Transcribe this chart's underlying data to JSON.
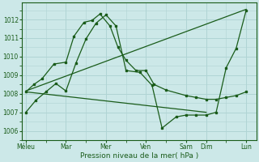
{
  "xlabel": "Pression niveau de la mer( hPa )",
  "background_color": "#cce8e8",
  "grid_color": "#b0d4d4",
  "line_color": "#1a5c1a",
  "ylim": [
    1005.5,
    1012.9
  ],
  "yticks": [
    1006,
    1007,
    1008,
    1009,
    1010,
    1011,
    1012
  ],
  "x_labels": [
    "Méleu",
    "Mar",
    "Mer",
    "Ven",
    "Sam",
    "Dim",
    "Lun"
  ],
  "x_positions": [
    0,
    2,
    4,
    6,
    8,
    9,
    11
  ],
  "xlim": [
    -0.2,
    11.5
  ],
  "trend_up": {
    "x": [
      0,
      11
    ],
    "y": [
      1008.15,
      1012.55
    ]
  },
  "trend_down": {
    "x": [
      0,
      9.0
    ],
    "y": [
      1008.1,
      1007.0
    ]
  },
  "line_jagged1": {
    "x": [
      0,
      0.4,
      0.8,
      1.4,
      2.0,
      2.4,
      2.9,
      3.3,
      3.7,
      4.2,
      4.6,
      5.0,
      5.5,
      6.0,
      6.4,
      7.0,
      8.0,
      8.5,
      9.0,
      9.5,
      10.0,
      10.5,
      11.0
    ],
    "y": [
      1008.1,
      1008.5,
      1008.8,
      1009.6,
      1009.7,
      1011.1,
      1011.85,
      1011.95,
      1012.3,
      1011.65,
      1010.5,
      1009.8,
      1009.25,
      1009.25,
      1008.5,
      1008.2,
      1007.9,
      1007.8,
      1007.7,
      1007.7,
      1007.8,
      1007.9,
      1008.1
    ]
  },
  "line_jagged2": {
    "x": [
      0,
      0.5,
      1.0,
      1.5,
      2.0,
      2.5,
      3.0,
      3.5,
      4.0,
      4.5,
      5.0,
      5.7,
      6.3,
      6.8,
      7.5,
      8.0,
      8.5,
      9.0,
      9.5,
      10.0,
      10.5,
      11.0
    ],
    "y": [
      1007.0,
      1007.65,
      1008.1,
      1008.55,
      1008.15,
      1009.65,
      1010.95,
      1011.8,
      1012.25,
      1011.65,
      1009.25,
      1009.15,
      1008.45,
      1006.15,
      1006.75,
      1006.85,
      1006.85,
      1006.85,
      1007.0,
      1009.4,
      1010.45,
      1012.5
    ]
  }
}
